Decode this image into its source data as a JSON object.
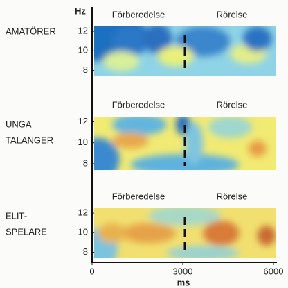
{
  "chart_data": [
    {
      "type": "heatmap",
      "label": [
        "AMATÖRER"
      ],
      "ylabel": "Hz",
      "sections": [
        "Förberedelse",
        "Rörelse"
      ],
      "divider": 3000,
      "xlim": [
        0,
        6000
      ],
      "ylim": [
        7.4,
        12.5
      ],
      "yticks": [
        8,
        10,
        12
      ]
    },
    {
      "type": "heatmap",
      "label": [
        "UNGA",
        "TALANGER"
      ],
      "sections": [
        "Förberedelse",
        "Rörelse"
      ],
      "divider": 3000,
      "xlim": [
        0,
        6000
      ],
      "ylim": [
        7.4,
        12.5
      ],
      "yticks": [
        8,
        10,
        12
      ]
    },
    {
      "type": "heatmap",
      "label": [
        "ELIT-",
        "SPELARE"
      ],
      "sections": [
        "Förberedelse",
        "Rörelse"
      ],
      "divider": 3000,
      "xlim": [
        0,
        6000
      ],
      "ylim": [
        7.4,
        12.5
      ],
      "yticks": [
        8,
        10,
        12
      ],
      "xticks": [
        0,
        3000,
        6000
      ],
      "xlabel": "ms"
    }
  ]
}
